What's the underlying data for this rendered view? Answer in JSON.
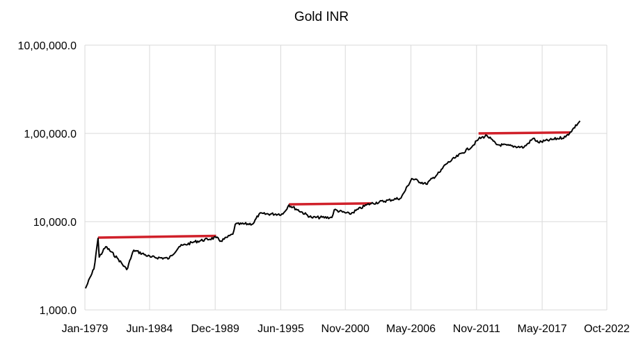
{
  "chart_data": {
    "type": "line",
    "title": "Gold INR",
    "xlabel": "",
    "ylabel": "",
    "y_scale": "log",
    "ylim": [
      1000,
      1000000
    ],
    "xlim": [
      "Jan-1979",
      "Oct-2022"
    ],
    "grid": true,
    "legend": "none",
    "y_ticks": [
      "1,000.0",
      "10,000.0",
      "1,00,000.0",
      "10,00,000.0"
    ],
    "y_tick_values": [
      1000,
      10000,
      100000,
      1000000
    ],
    "x_ticks": [
      "Jan-1979",
      "Jun-1984",
      "Dec-1989",
      "Jun-1995",
      "Nov-2000",
      "May-2006",
      "Nov-2011",
      "May-2017",
      "Oct-2022"
    ],
    "x_tick_values": [
      1979.0,
      1984.42,
      1989.92,
      1995.42,
      2000.83,
      2006.33,
      2011.83,
      2017.33,
      2022.75
    ],
    "series": [
      {
        "color": "#000000",
        "x": [
          1979.05,
          1979.76,
          1980.1,
          1980.2,
          1980.75,
          1981.8,
          1982.5,
          1983.1,
          1984.5,
          1986.05,
          1986.9,
          1988.2,
          1990.0,
          1990.4,
          1991.4,
          1991.6,
          1993.1,
          1993.6,
          1995.6,
          1996.1,
          1998.0,
          1999.7,
          1999.9,
          2001.2,
          2002.6,
          2003.0,
          2005.5,
          2006.4,
          2007.6,
          2008.8,
          2009.2,
          2011.5,
          2012.0,
          2012.7,
          2013.5,
          2015.8,
          2016.6,
          2017.0,
          2019.3,
          2019.7,
          2020.5
        ],
        "y": [
          1754,
          2915,
          6470,
          3970,
          5210,
          3755,
          2862,
          4755,
          3970,
          3827,
          5210,
          5910,
          6590,
          6025,
          7210,
          9310,
          9470,
          12200,
          12200,
          15450,
          11150,
          11150,
          13600,
          12200,
          15450,
          16030,
          18530,
          30780,
          26600,
          36900,
          44200,
          72100,
          86500,
          94700,
          74800,
          69600,
          88100,
          79000,
          91400,
          103700,
          138700
        ]
      }
    ],
    "annotations": [
      {
        "type": "hline",
        "color": "#d0202a",
        "x": [
          1980.1,
          1990.0
        ],
        "y": [
          6590,
          6900
        ]
      },
      {
        "type": "hline",
        "color": "#d0202a",
        "x": [
          1996.1,
          2003.0
        ],
        "y": [
          15700,
          16100
        ]
      },
      {
        "type": "hline",
        "color": "#d0202a",
        "x": [
          2012.0,
          2019.7
        ],
        "y": [
          100000,
          102500
        ]
      }
    ]
  }
}
